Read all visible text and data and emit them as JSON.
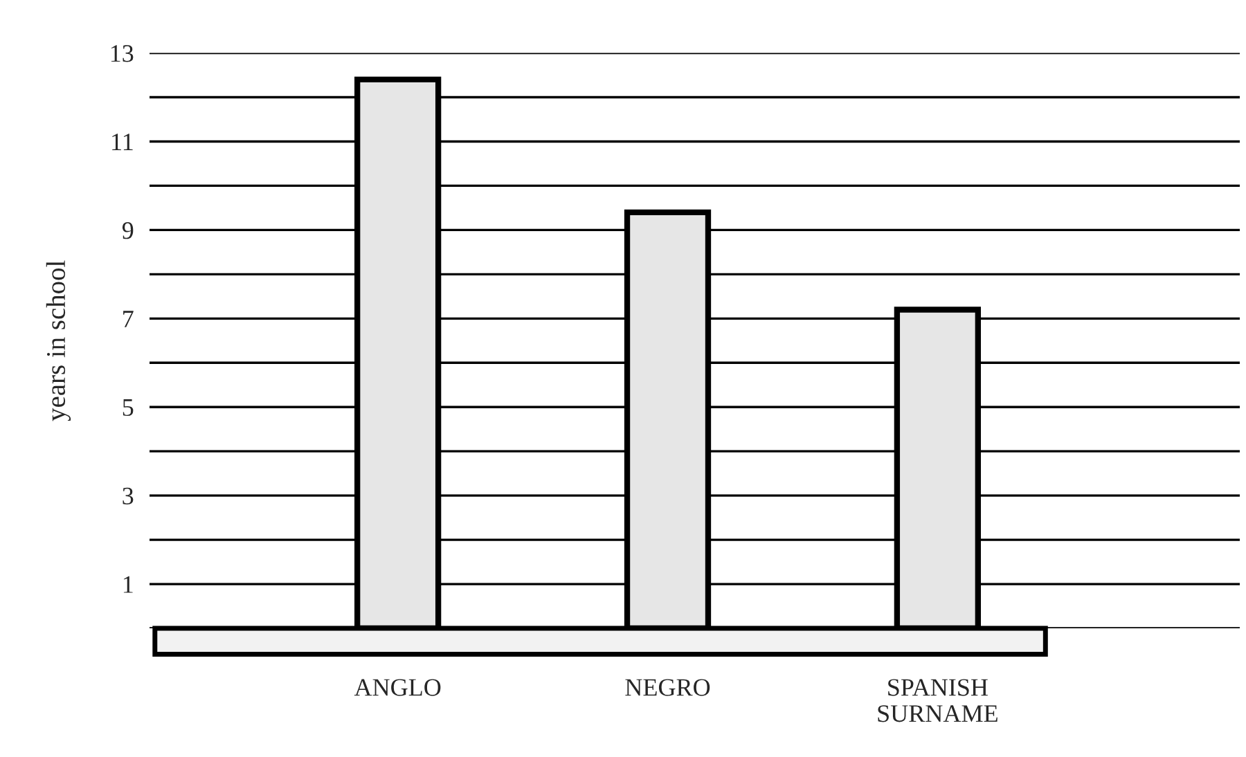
{
  "chart_data": {
    "type": "bar",
    "ylabel": "years in school",
    "categories": [
      "ANGLO",
      "NEGRO",
      "SPANISH\nSURNAME"
    ],
    "values": [
      12.4,
      9.4,
      7.2
    ],
    "color": "#e6e6e6",
    "ylim": [
      0,
      13
    ],
    "yticks": [
      {
        "value": 0,
        "label": null
      },
      1,
      {
        "value": 2,
        "label": null
      },
      3,
      {
        "value": 4,
        "label": null
      },
      5,
      {
        "value": 6,
        "label": null
      },
      7,
      {
        "value": 8,
        "label": null
      },
      9,
      {
        "value": 10,
        "label": null
      },
      11,
      {
        "value": 12,
        "label": null
      },
      13
    ],
    "grid": "y"
  }
}
